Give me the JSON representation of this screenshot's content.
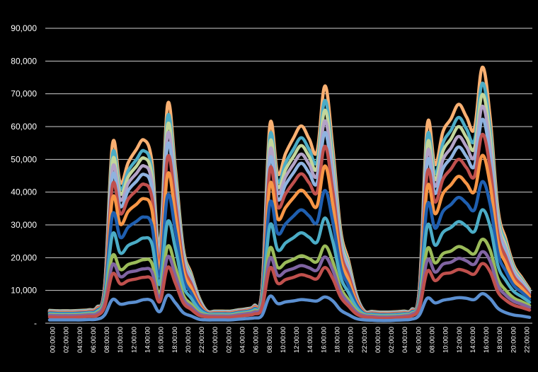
{
  "chart_data": {
    "type": "area",
    "stacked": true,
    "title": "",
    "xlabel": "",
    "ylabel": "",
    "ylim": [
      0,
      90000
    ],
    "grid": true,
    "background": "#000000",
    "y_ticks": [
      "-",
      "10,000",
      "20,000",
      "30,000",
      "40,000",
      "50,000",
      "60,000",
      "70,000",
      "80,000",
      "90,000"
    ],
    "x_ticks": [
      "00:00:00",
      "02:00:00",
      "04:00:00",
      "06:00:00",
      "08:00:00",
      "10:00:00",
      "12:00:00",
      "14:00:00",
      "16:00:00",
      "18:00:00",
      "20:00:00",
      "22:00:00",
      "00:00:00",
      "02:00:00",
      "04:00:00",
      "06:00:00",
      "08:00:00",
      "10:00:00",
      "12:00:00",
      "14:00:00",
      "16:00:00",
      "18:00:00",
      "20:00:00",
      "22:00:00",
      "00:00:00",
      "02:00:00",
      "04:00:00",
      "06:00:00",
      "08:00:00",
      "10:00:00",
      "12:00:00",
      "14:00:00",
      "16:00:00",
      "18:00:00",
      "20:00:00",
      "22:00:00"
    ],
    "series_colors": [
      "#5b8fd0",
      "#c0504d",
      "#8064a2",
      "#9bbb59",
      "#4bacc6",
      "#1f5fb0",
      "#f79646",
      "#c0504d",
      "#8fb3e0",
      "#b3a2c7",
      "#c3d69b",
      "#4bacc6",
      "#f9b072"
    ],
    "series_increments": [
      [
        1000,
        1000,
        1000,
        1000,
        1000,
        1100,
        1200,
        2500,
        7200,
        5800,
        6200,
        6500,
        7200,
        6800,
        3500,
        8500,
        6200,
        3200,
        2200,
        1200,
        1000,
        1000,
        1000,
        1000,
        1200,
        1400,
        1600,
        2400,
        8200,
        6000,
        6500,
        6800,
        7200,
        7000,
        6800,
        8000,
        6800,
        4000,
        2600,
        1400,
        1000,
        900,
        800,
        800,
        900,
        1000,
        1200,
        2500,
        7600,
        6200,
        7000,
        7400,
        7800,
        7600,
        7200,
        9000,
        7500,
        4500,
        3200,
        2500,
        2200,
        1800
      ],
      [
        900,
        800,
        800,
        800,
        900,
        1000,
        1100,
        2500,
        7800,
        6200,
        6800,
        7000,
        6800,
        6500,
        3000,
        8500,
        6000,
        3000,
        2000,
        1200,
        900,
        800,
        800,
        800,
        900,
        1000,
        1200,
        2200,
        8600,
        6200,
        6800,
        7200,
        7600,
        7200,
        6800,
        9000,
        6800,
        4000,
        2600,
        1400,
        900,
        800,
        700,
        700,
        700,
        800,
        1000,
        2200,
        8200,
        6800,
        8000,
        8000,
        8600,
        8200,
        7800,
        9200,
        8200,
        5000,
        3800,
        3000,
        2600,
        2200
      ],
      [
        500,
        500,
        500,
        500,
        500,
        500,
        600,
        1000,
        2800,
        2200,
        2500,
        2500,
        2600,
        2400,
        1200,
        3200,
        2400,
        1200,
        800,
        500,
        400,
        400,
        400,
        400,
        500,
        500,
        600,
        800,
        3000,
        2400,
        2600,
        2700,
        2800,
        2700,
        2600,
        3200,
        2600,
        1500,
        1000,
        600,
        400,
        400,
        400,
        400,
        400,
        400,
        500,
        800,
        3400,
        2600,
        3000,
        3200,
        3400,
        3200,
        3000,
        3600,
        3200,
        2000,
        1500,
        1200,
        1000,
        800
      ],
      [
        200,
        200,
        200,
        200,
        200,
        200,
        300,
        700,
        2800,
        2200,
        2400,
        2600,
        2800,
        2600,
        1200,
        3200,
        2400,
        1200,
        800,
        400,
        200,
        200,
        200,
        200,
        200,
        200,
        300,
        600,
        3000,
        2400,
        2600,
        2800,
        3000,
        2800,
        2600,
        3400,
        2600,
        1400,
        900,
        500,
        200,
        200,
        200,
        200,
        200,
        200,
        200,
        600,
        3400,
        2800,
        3200,
        3400,
        3600,
        3400,
        3200,
        3800,
        3400,
        2000,
        1500,
        1000,
        800,
        600
      ],
      [
        300,
        300,
        300,
        300,
        300,
        300,
        400,
        1000,
        6500,
        5000,
        5800,
        6200,
        6600,
        6000,
        3000,
        7500,
        5800,
        2800,
        1800,
        900,
        300,
        300,
        300,
        300,
        300,
        300,
        400,
        900,
        7000,
        5400,
        6000,
        6600,
        7000,
        6500,
        6000,
        8500,
        6200,
        3200,
        2200,
        1000,
        300,
        300,
        300,
        300,
        300,
        300,
        300,
        900,
        7000,
        5400,
        6500,
        7200,
        7600,
        7200,
        6800,
        9000,
        7200,
        4000,
        3000,
        2000,
        1500,
        1000
      ],
      [
        200,
        200,
        200,
        200,
        200,
        200,
        300,
        800,
        6000,
        4800,
        5600,
        6200,
        6400,
        5600,
        2600,
        8000,
        5400,
        2600,
        1700,
        800,
        200,
        200,
        200,
        200,
        200,
        200,
        300,
        800,
        6800,
        5000,
        5800,
        6600,
        7000,
        6500,
        6000,
        8400,
        6000,
        3000,
        2100,
        900,
        200,
        200,
        200,
        200,
        200,
        200,
        200,
        800,
        6400,
        5200,
        6400,
        7000,
        7400,
        7000,
        6600,
        8600,
        6800,
        3800,
        2800,
        1800,
        1400,
        900
      ],
      [
        200,
        200,
        200,
        200,
        200,
        200,
        300,
        700,
        5000,
        4000,
        4800,
        5200,
        5600,
        4800,
        2200,
        6500,
        4600,
        2200,
        1500,
        700,
        200,
        200,
        200,
        200,
        200,
        200,
        300,
        700,
        5600,
        4400,
        5000,
        5600,
        6000,
        5500,
        5000,
        7500,
        5200,
        2600,
        1800,
        800,
        200,
        200,
        200,
        200,
        200,
        200,
        200,
        700,
        5400,
        4400,
        5400,
        6000,
        6400,
        6000,
        5600,
        8000,
        6000,
        3200,
        2400,
        1600,
        1200,
        800
      ],
      [
        100,
        100,
        100,
        100,
        100,
        100,
        200,
        600,
        4000,
        3200,
        3800,
        4200,
        4400,
        3800,
        1800,
        5200,
        3600,
        1800,
        1200,
        600,
        100,
        100,
        100,
        100,
        100,
        100,
        200,
        600,
        4600,
        3600,
        4200,
        4600,
        5000,
        4600,
        4200,
        6000,
        4200,
        2200,
        1500,
        600,
        100,
        100,
        100,
        100,
        100,
        100,
        100,
        600,
        4400,
        3600,
        4400,
        4800,
        5200,
        4800,
        4600,
        6400,
        5000,
        2600,
        1900,
        1200,
        900,
        600
      ],
      [
        100,
        100,
        100,
        100,
        100,
        100,
        100,
        400,
        2800,
        2200,
        2600,
        2800,
        3000,
        2600,
        1200,
        3800,
        2600,
        1200,
        800,
        400,
        100,
        100,
        100,
        100,
        100,
        100,
        100,
        400,
        3000,
        2400,
        2800,
        3000,
        3200,
        3000,
        2800,
        4200,
        3000,
        1500,
        1000,
        400,
        100,
        100,
        100,
        100,
        100,
        100,
        100,
        400,
        3200,
        2600,
        3200,
        3400,
        3800,
        3400,
        3200,
        4600,
        3600,
        1800,
        1300,
        800,
        600,
        400
      ],
      [
        100,
        100,
        100,
        100,
        100,
        100,
        100,
        300,
        2400,
        2000,
        2200,
        2400,
        2600,
        2200,
        1000,
        3200,
        2200,
        1000,
        700,
        300,
        100,
        100,
        100,
        100,
        100,
        100,
        100,
        300,
        2600,
        2000,
        2400,
        2600,
        2800,
        2600,
        2400,
        3600,
        2600,
        1300,
        900,
        300,
        100,
        100,
        100,
        100,
        100,
        100,
        100,
        300,
        2800,
        2200,
        2800,
        3000,
        3200,
        3000,
        2800,
        4000,
        3000,
        1500,
        1100,
        700,
        500,
        300
      ],
      [
        100,
        100,
        100,
        100,
        100,
        100,
        100,
        300,
        2200,
        1800,
        2000,
        2200,
        2400,
        2000,
        900,
        2800,
        2000,
        900,
        600,
        300,
        100,
        100,
        100,
        100,
        100,
        100,
        100,
        300,
        2400,
        1800,
        2200,
        2400,
        2600,
        2400,
        2200,
        3200,
        2400,
        1200,
        800,
        300,
        100,
        100,
        100,
        100,
        100,
        100,
        100,
        300,
        2600,
        2000,
        2600,
        2800,
        3000,
        2800,
        2600,
        3600,
        2800,
        1400,
        1000,
        600,
        400,
        300
      ],
      [
        100,
        100,
        100,
        100,
        100,
        100,
        100,
        300,
        2000,
        1600,
        1800,
        2000,
        2200,
        1800,
        800,
        2600,
        1800,
        800,
        500,
        300,
        100,
        100,
        100,
        100,
        100,
        100,
        100,
        300,
        2200,
        1600,
        2000,
        2200,
        2400,
        2200,
        2000,
        3000,
        2200,
        1100,
        700,
        300,
        100,
        100,
        100,
        100,
        100,
        100,
        100,
        300,
        2400,
        1800,
        2400,
        2600,
        2800,
        2600,
        2400,
        3400,
        2600,
        1300,
        900,
        600,
        400,
        300
      ],
      [
        100,
        100,
        100,
        100,
        100,
        100,
        100,
        300,
        3100,
        1800,
        2500,
        3100,
        3300,
        2400,
        1000,
        3700,
        2100,
        900,
        600,
        300,
        100,
        100,
        100,
        100,
        100,
        100,
        100,
        300,
        3400,
        2400,
        2900,
        3400,
        3600,
        3200,
        3000,
        4400,
        3000,
        1500,
        1000,
        300,
        100,
        100,
        100,
        100,
        100,
        100,
        100,
        300,
        3700,
        2800,
        3500,
        3500,
        4000,
        3700,
        3600,
        4900,
        3500,
        1700,
        1200,
        700,
        500,
        400
      ]
    ]
  }
}
